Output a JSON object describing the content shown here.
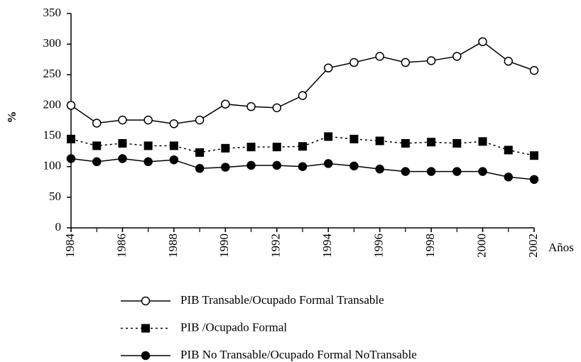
{
  "chart_data": {
    "type": "line",
    "x": [
      1984,
      1985,
      1986,
      1987,
      1988,
      1989,
      1990,
      1991,
      1992,
      1993,
      1994,
      1995,
      1996,
      1997,
      1998,
      1999,
      2000,
      2001,
      2002
    ],
    "xlim": [
      1984,
      2002
    ],
    "xticks": [
      1984,
      1986,
      1988,
      1990,
      1992,
      1994,
      1996,
      1998,
      2000,
      2002
    ],
    "x_label": "Años",
    "y_label": "%",
    "ylim": [
      0,
      350
    ],
    "yticks": [
      0,
      50,
      100,
      150,
      200,
      250,
      300,
      350
    ],
    "series": [
      {
        "name": "PIB Transable/Ocupado Formal Transable",
        "color": "#000000",
        "marker": "open-circle",
        "dash": "solid",
        "values": [
          200,
          171,
          176,
          176,
          170,
          176,
          202,
          198,
          196,
          216,
          261,
          270,
          280,
          270,
          273,
          280,
          304,
          272,
          257
        ]
      },
      {
        "name": "PIB /Ocupado Formal",
        "color": "#000000",
        "marker": "square",
        "dash": "dotted",
        "values": [
          145,
          134,
          138,
          134,
          134,
          123,
          130,
          132,
          132,
          133,
          149,
          145,
          142,
          138,
          140,
          138,
          141,
          127,
          118
        ]
      },
      {
        "name": "PIB No Transable/Ocupado Formal NoTransable",
        "color": "#000000",
        "marker": "filled-circle",
        "dash": "solid",
        "values": [
          113,
          108,
          113,
          108,
          111,
          97,
          99,
          102,
          102,
          100,
          105,
          101,
          96,
          92,
          92,
          92,
          92,
          83,
          79
        ]
      }
    ]
  }
}
